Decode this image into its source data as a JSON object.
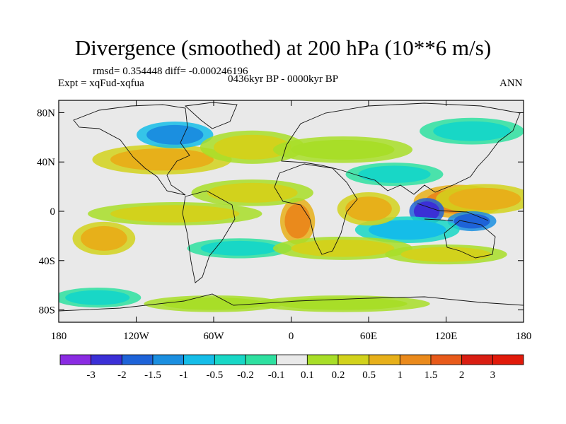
{
  "title": "Divergence (smoothed) at 200 hPa (10**6 m/s)",
  "stats": "rmsd= 0.354448 diff= -0.000246196",
  "experiment": "Expt = xqFud-xqfua",
  "period": "0436kyr BP - 0000kyr BP",
  "season": "ANN",
  "map": {
    "lat_labels": [
      "80N",
      "40N",
      "0",
      "40S",
      "80S"
    ],
    "lat_values": [
      80,
      40,
      0,
      -40,
      -80
    ],
    "lon_labels": [
      "180",
      "120W",
      "60W",
      "0",
      "60E",
      "120E",
      "180"
    ],
    "lon_values": [
      -180,
      -120,
      -60,
      0,
      60,
      120,
      180
    ]
  },
  "colorbar": {
    "labels": [
      "-3",
      "-2",
      "-1.5",
      "-1",
      "-0.5",
      "-0.2",
      "-0.1",
      "0.1",
      "0.2",
      "0.5",
      "1",
      "1.5",
      "2",
      "3"
    ],
    "colors": [
      "#8a2be2",
      "#3b2fd6",
      "#1e63d8",
      "#1b8fe0",
      "#15bde8",
      "#18d7c6",
      "#2ee0a0",
      "#e9e9e9",
      "#a8de28",
      "#d2d21c",
      "#e7b01a",
      "#ea8a1c",
      "#e85a1a",
      "#d91e12",
      "#e11a0a"
    ]
  },
  "features": [
    {
      "lon": 130,
      "lat": 8,
      "rx": 26,
      "ry": 10,
      "cls": 11
    },
    {
      "lon": 150,
      "lat": 10,
      "rx": 28,
      "ry": 9,
      "cls": 10
    },
    {
      "lon": 105,
      "lat": 0,
      "rx": 10,
      "ry": 8,
      "cls": 1
    },
    {
      "lon": 140,
      "lat": -8,
      "rx": 14,
      "ry": 6,
      "cls": 2
    },
    {
      "lon": 90,
      "lat": -15,
      "rx": 30,
      "ry": 8,
      "cls": 4
    },
    {
      "lon": 60,
      "lat": 2,
      "rx": 18,
      "ry": 10,
      "cls": 10
    },
    {
      "lon": 5,
      "lat": -8,
      "rx": 10,
      "ry": 14,
      "cls": 11
    },
    {
      "lon": -30,
      "lat": 15,
      "rx": 35,
      "ry": 8,
      "cls": 9
    },
    {
      "lon": -90,
      "lat": -2,
      "rx": 50,
      "ry": 7,
      "cls": 9
    },
    {
      "lon": -145,
      "lat": -22,
      "rx": 18,
      "ry": 10,
      "cls": 10
    },
    {
      "lon": -100,
      "lat": 42,
      "rx": 40,
      "ry": 9,
      "cls": 10
    },
    {
      "lon": -90,
      "lat": 62,
      "rx": 22,
      "ry": 8,
      "cls": 3
    },
    {
      "lon": -30,
      "lat": 52,
      "rx": 30,
      "ry": 10,
      "cls": 9
    },
    {
      "lon": 40,
      "lat": 50,
      "rx": 40,
      "ry": 8,
      "cls": 8
    },
    {
      "lon": 140,
      "lat": 65,
      "rx": 30,
      "ry": 8,
      "cls": 5
    },
    {
      "lon": -40,
      "lat": -30,
      "rx": 30,
      "ry": 6,
      "cls": 5
    },
    {
      "lon": 40,
      "lat": -30,
      "rx": 40,
      "ry": 7,
      "cls": 9
    },
    {
      "lon": 120,
      "lat": -35,
      "rx": 35,
      "ry": 6,
      "cls": 9
    },
    {
      "lon": -60,
      "lat": -75,
      "rx": 40,
      "ry": 5,
      "cls": 8
    },
    {
      "lon": 40,
      "lat": -75,
      "rx": 50,
      "ry": 5,
      "cls": 8
    },
    {
      "lon": -150,
      "lat": -70,
      "rx": 25,
      "ry": 6,
      "cls": 5
    },
    {
      "lon": 80,
      "lat": 30,
      "rx": 28,
      "ry": 7,
      "cls": 5
    }
  ]
}
